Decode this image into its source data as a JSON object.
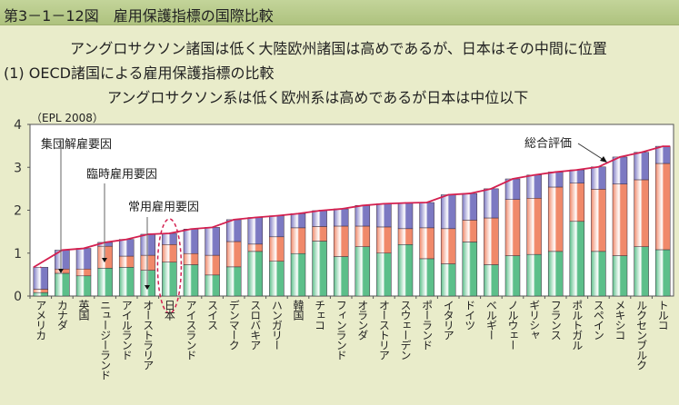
{
  "header": {
    "title": "第3－1－12図　雇用保護指標の国際比較"
  },
  "subtitle": "アングロサクソン諸国は低く大陸欧州諸国は高めであるが、日本はその中間に位置",
  "section": "(1) OECD諸国による雇用保護指標の比較",
  "section_note": "アングロサクソン系は低く欧州系は高めであるが日本は中位以下",
  "chart_data": {
    "type": "bar",
    "stacked": true,
    "ylabel": "（EPL 2008）",
    "ylim": [
      0,
      4
    ],
    "yticks": [
      "0",
      "1",
      "2",
      "3",
      "4"
    ],
    "grid": false,
    "categories": [
      "アメリカ",
      "カナダ",
      "英国",
      "ニュージーランド",
      "アイルランド",
      "オーストラリア",
      "日本",
      "アイスランド",
      "スイス",
      "デンマーク",
      "スロバキア",
      "ハンガリー",
      "韓国",
      "チェコ",
      "フィンランド",
      "オランダ",
      "オーストリア",
      "スウェーデン",
      "ポーランド",
      "イタリア",
      "ドイツ",
      "ベルギー",
      "ノルウェー",
      "ギリシャ",
      "フランス",
      "ポルトガル",
      "スペイン",
      "メキシコ",
      "ルクセンブルク",
      "トルコ"
    ],
    "series": [
      {
        "name": "常用雇用要因",
        "color": "#5cbf8a",
        "values": [
          0.08,
          0.53,
          0.47,
          0.65,
          0.67,
          0.6,
          0.79,
          0.73,
          0.49,
          0.68,
          1.04,
          0.81,
          0.99,
          1.28,
          0.92,
          1.15,
          1.0,
          1.2,
          0.87,
          0.75,
          1.26,
          0.73,
          0.94,
          0.97,
          1.04,
          1.74,
          1.04,
          0.94,
          1.15,
          1.08
        ]
      },
      {
        "name": "臨時雇用要因",
        "color": "#f0896a",
        "values": [
          0.08,
          0.1,
          0.16,
          0.51,
          0.26,
          0.35,
          0.41,
          0.26,
          0.46,
          0.59,
          0.17,
          0.57,
          0.6,
          0.34,
          0.71,
          0.48,
          0.61,
          0.37,
          0.72,
          0.82,
          0.51,
          1.09,
          1.31,
          1.31,
          1.5,
          0.89,
          1.45,
          1.67,
          1.56,
          2.01
        ]
      },
      {
        "name": "集団解雇要因",
        "color": "#7c79c2",
        "values": [
          0.51,
          0.44,
          0.48,
          0.09,
          0.39,
          0.49,
          0.26,
          0.57,
          0.65,
          0.51,
          0.62,
          0.49,
          0.33,
          0.37,
          0.4,
          0.48,
          0.54,
          0.6,
          0.59,
          0.79,
          0.62,
          0.68,
          0.48,
          0.54,
          0.35,
          0.31,
          0.52,
          0.63,
          0.64,
          0.4
        ]
      }
    ],
    "line": {
      "name": "総合評価",
      "color": "#d42050",
      "values": [
        0.67,
        1.07,
        1.11,
        1.25,
        1.32,
        1.44,
        1.46,
        1.56,
        1.6,
        1.78,
        1.83,
        1.87,
        1.92,
        1.99,
        2.03,
        2.11,
        2.15,
        2.17,
        2.18,
        2.36,
        2.39,
        2.5,
        2.73,
        2.82,
        2.89,
        2.94,
        3.01,
        3.24,
        3.35,
        3.49
      ]
    },
    "highlight": "日本"
  }
}
